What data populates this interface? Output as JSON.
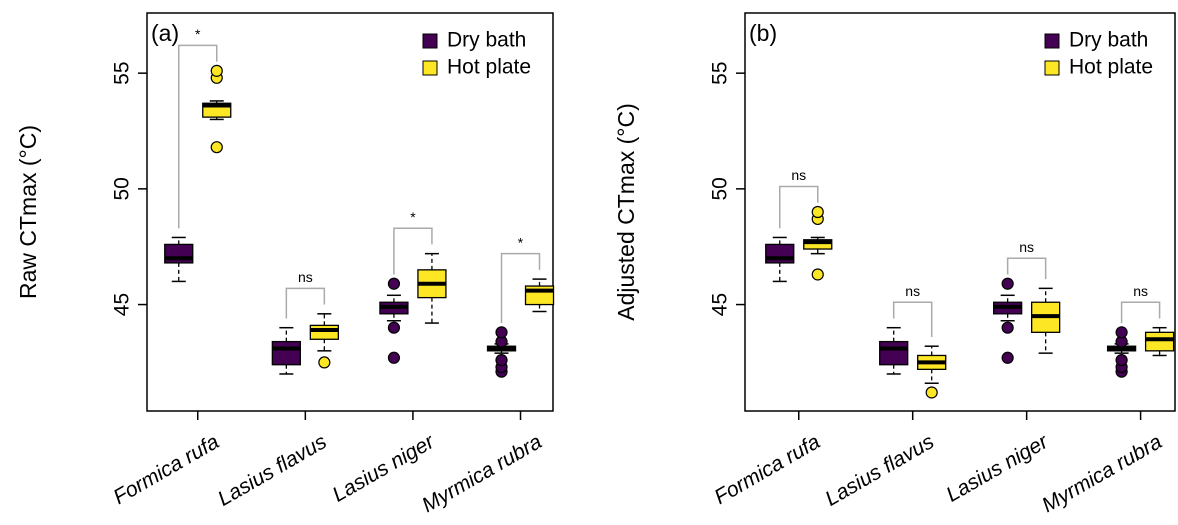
{
  "chart_data": [
    {
      "type": "boxplot",
      "title": "(a)",
      "ylabel": "Raw CTmax (°C)",
      "categories": [
        "Formica rufa",
        "Lasius flavus",
        "Lasius niger",
        "Myrmica rubra"
      ],
      "annotations": [
        "*",
        "ns",
        "*",
        "*"
      ],
      "ylim": [
        40.4,
        57.6
      ],
      "yticks": [
        45,
        50,
        55
      ],
      "legend": "topright",
      "series": [
        {
          "name": "Dry bath",
          "color": "#440154",
          "values": [
            {
              "low": 46.0,
              "q1": 46.8,
              "median": 47.0,
              "q3": 47.6,
              "high": 47.9,
              "outliers": []
            },
            {
              "low": 42.0,
              "q1": 42.4,
              "median": 43.1,
              "q3": 43.4,
              "high": 44.0,
              "outliers": []
            },
            {
              "low": 44.3,
              "q1": 44.6,
              "median": 44.9,
              "q3": 45.1,
              "high": 45.4,
              "outliers": [
                45.9,
                44.0,
                42.7
              ]
            },
            {
              "low": 42.9,
              "q1": 43.0,
              "median": 43.1,
              "q3": 43.2,
              "high": 43.3,
              "outliers": [
                42.1,
                42.3,
                42.6,
                43.4,
                43.8
              ]
            }
          ]
        },
        {
          "name": "Hot plate",
          "color": "#fde725",
          "values": [
            {
              "low": 53.0,
              "q1": 53.1,
              "median": 53.6,
              "q3": 53.7,
              "high": 53.8,
              "outliers": [
                51.8,
                54.8,
                55.1
              ]
            },
            {
              "low": 43.0,
              "q1": 43.5,
              "median": 43.9,
              "q3": 44.1,
              "high": 44.6,
              "outliers": [
                42.5
              ]
            },
            {
              "low": 44.2,
              "q1": 45.3,
              "median": 45.9,
              "q3": 46.5,
              "high": 47.2,
              "outliers": []
            },
            {
              "low": 44.7,
              "q1": 45.0,
              "median": 45.6,
              "q3": 45.8,
              "high": 46.1,
              "outliers": []
            }
          ]
        }
      ]
    },
    {
      "type": "boxplot",
      "title": "(b)",
      "ylabel": "Adjusted CTmax (°C)",
      "categories": [
        "Formica rufa",
        "Lasius flavus",
        "Lasius niger",
        "Myrmica rubra"
      ],
      "annotations": [
        "ns",
        "ns",
        "ns",
        "ns"
      ],
      "ylim": [
        40.4,
        57.6
      ],
      "yticks": [
        45,
        50,
        55
      ],
      "legend": "topright",
      "series": [
        {
          "name": "Dry bath",
          "color": "#440154",
          "values": [
            {
              "low": 46.0,
              "q1": 46.8,
              "median": 47.0,
              "q3": 47.6,
              "high": 47.9,
              "outliers": []
            },
            {
              "low": 42.0,
              "q1": 42.4,
              "median": 43.1,
              "q3": 43.4,
              "high": 44.0,
              "outliers": []
            },
            {
              "low": 44.3,
              "q1": 44.6,
              "median": 44.9,
              "q3": 45.1,
              "high": 45.4,
              "outliers": [
                45.9,
                44.0,
                42.7
              ]
            },
            {
              "low": 42.9,
              "q1": 43.0,
              "median": 43.1,
              "q3": 43.2,
              "high": 43.3,
              "outliers": [
                42.1,
                42.3,
                42.6,
                43.4,
                43.8
              ]
            }
          ]
        },
        {
          "name": "Hot plate",
          "color": "#fde725",
          "values": [
            {
              "low": 47.2,
              "q1": 47.4,
              "median": 47.7,
              "q3": 47.8,
              "high": 47.9,
              "outliers": [
                46.3,
                48.7,
                49.0
              ]
            },
            {
              "low": 41.6,
              "q1": 42.2,
              "median": 42.5,
              "q3": 42.8,
              "high": 43.2,
              "outliers": [
                41.2
              ]
            },
            {
              "low": 42.9,
              "q1": 43.8,
              "median": 44.5,
              "q3": 45.1,
              "high": 45.7,
              "outliers": []
            },
            {
              "low": 42.8,
              "q1": 43.0,
              "median": 43.5,
              "q3": 43.8,
              "high": 44.0,
              "outliers": []
            }
          ]
        }
      ]
    }
  ]
}
